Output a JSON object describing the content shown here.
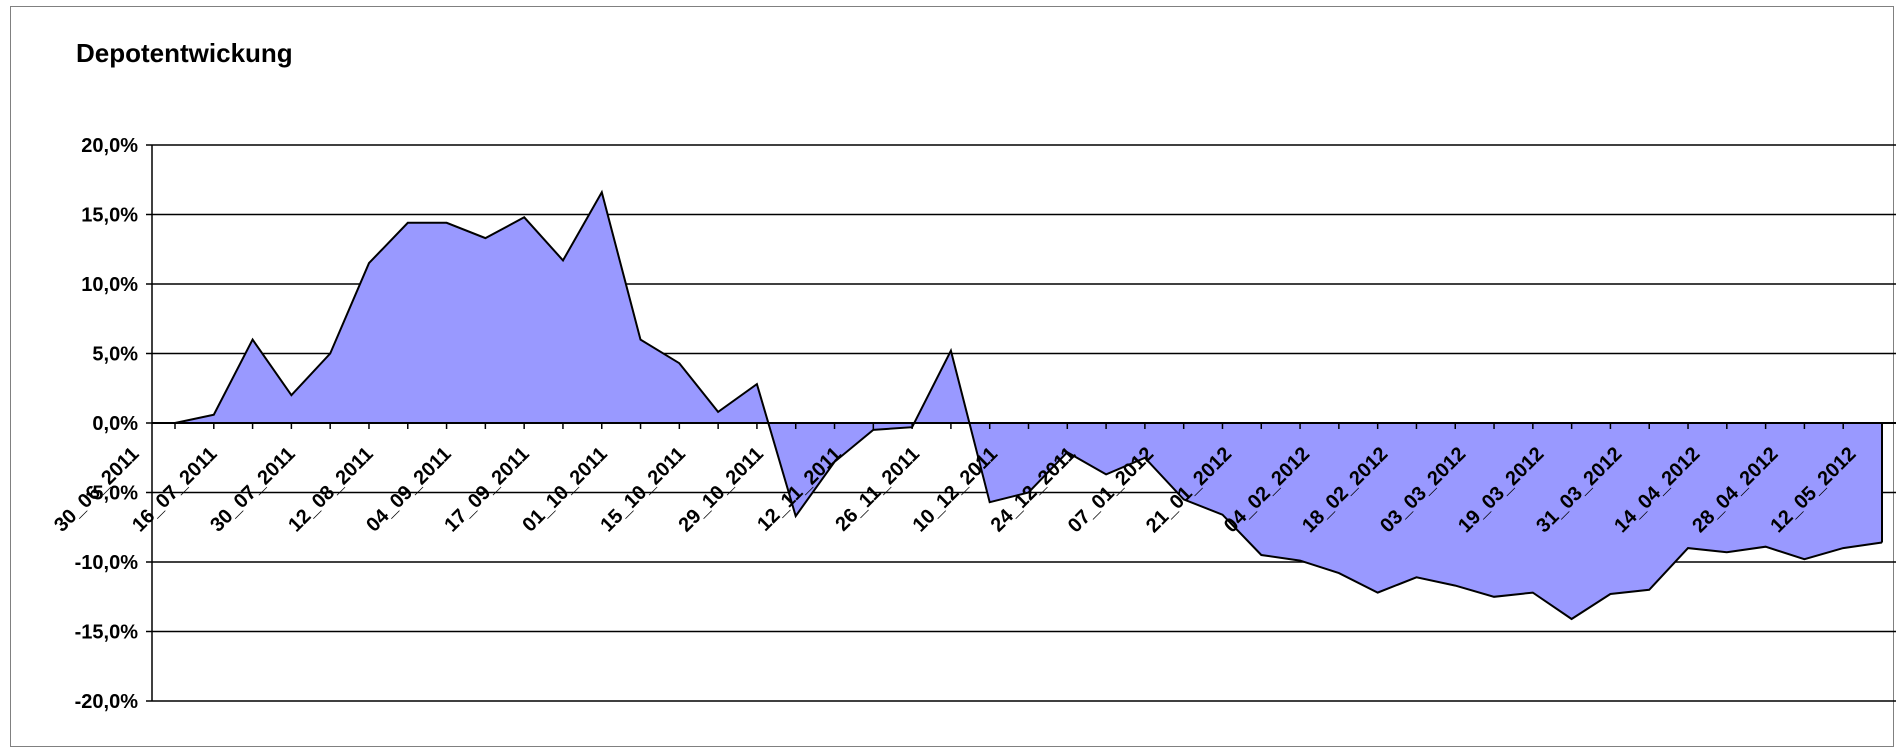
{
  "chart_data": {
    "type": "area",
    "title": "Depotentwickung",
    "xlabel": "",
    "ylabel": "",
    "ylim": [
      -0.2,
      0.2
    ],
    "yticks": [
      0.2,
      0.15,
      0.1,
      0.05,
      0.0,
      -0.05,
      -0.1,
      -0.15,
      -0.2
    ],
    "ytick_labels": [
      "20,0%",
      "15,0%",
      "10,0%",
      "5,0%",
      "0,0%",
      "-5,0%",
      "-10,0%",
      "-15,0%",
      "-20,0%"
    ],
    "grid": true,
    "fill_color": "#9999ff",
    "line_color": "#000000",
    "x_labels": [
      "30_06_2011",
      "16_07_2011",
      "30_07_2011",
      "12_08_2011",
      "04_09_2011",
      "17_09_2011",
      "01_10_2011",
      "15_10_2011",
      "29_10_2011",
      "12_11_2011",
      "26_11_2011",
      "10_12_2011",
      "24_12_2011",
      "07_01_2012",
      "21_01_2012",
      "04_02_2012",
      "18_02_2012",
      "03_03_2012",
      "19_03_2012",
      "31_03_2012",
      "14_04_2012",
      "28_04_2012",
      "12_05_2012"
    ],
    "values": [
      0.0,
      0.006,
      0.06,
      0.02,
      0.05,
      0.115,
      0.144,
      0.144,
      0.133,
      0.148,
      0.117,
      0.166,
      0.06,
      0.043,
      0.008,
      0.028,
      -0.067,
      -0.028,
      -0.005,
      -0.003,
      0.052,
      -0.057,
      -0.05,
      -0.021,
      -0.037,
      -0.025,
      -0.055,
      -0.066,
      -0.095,
      -0.099,
      -0.108,
      -0.122,
      -0.111,
      -0.117,
      -0.125,
      -0.122,
      -0.141,
      -0.123,
      -0.12,
      -0.09,
      -0.093,
      -0.089,
      -0.098,
      -0.09,
      -0.086
    ]
  }
}
